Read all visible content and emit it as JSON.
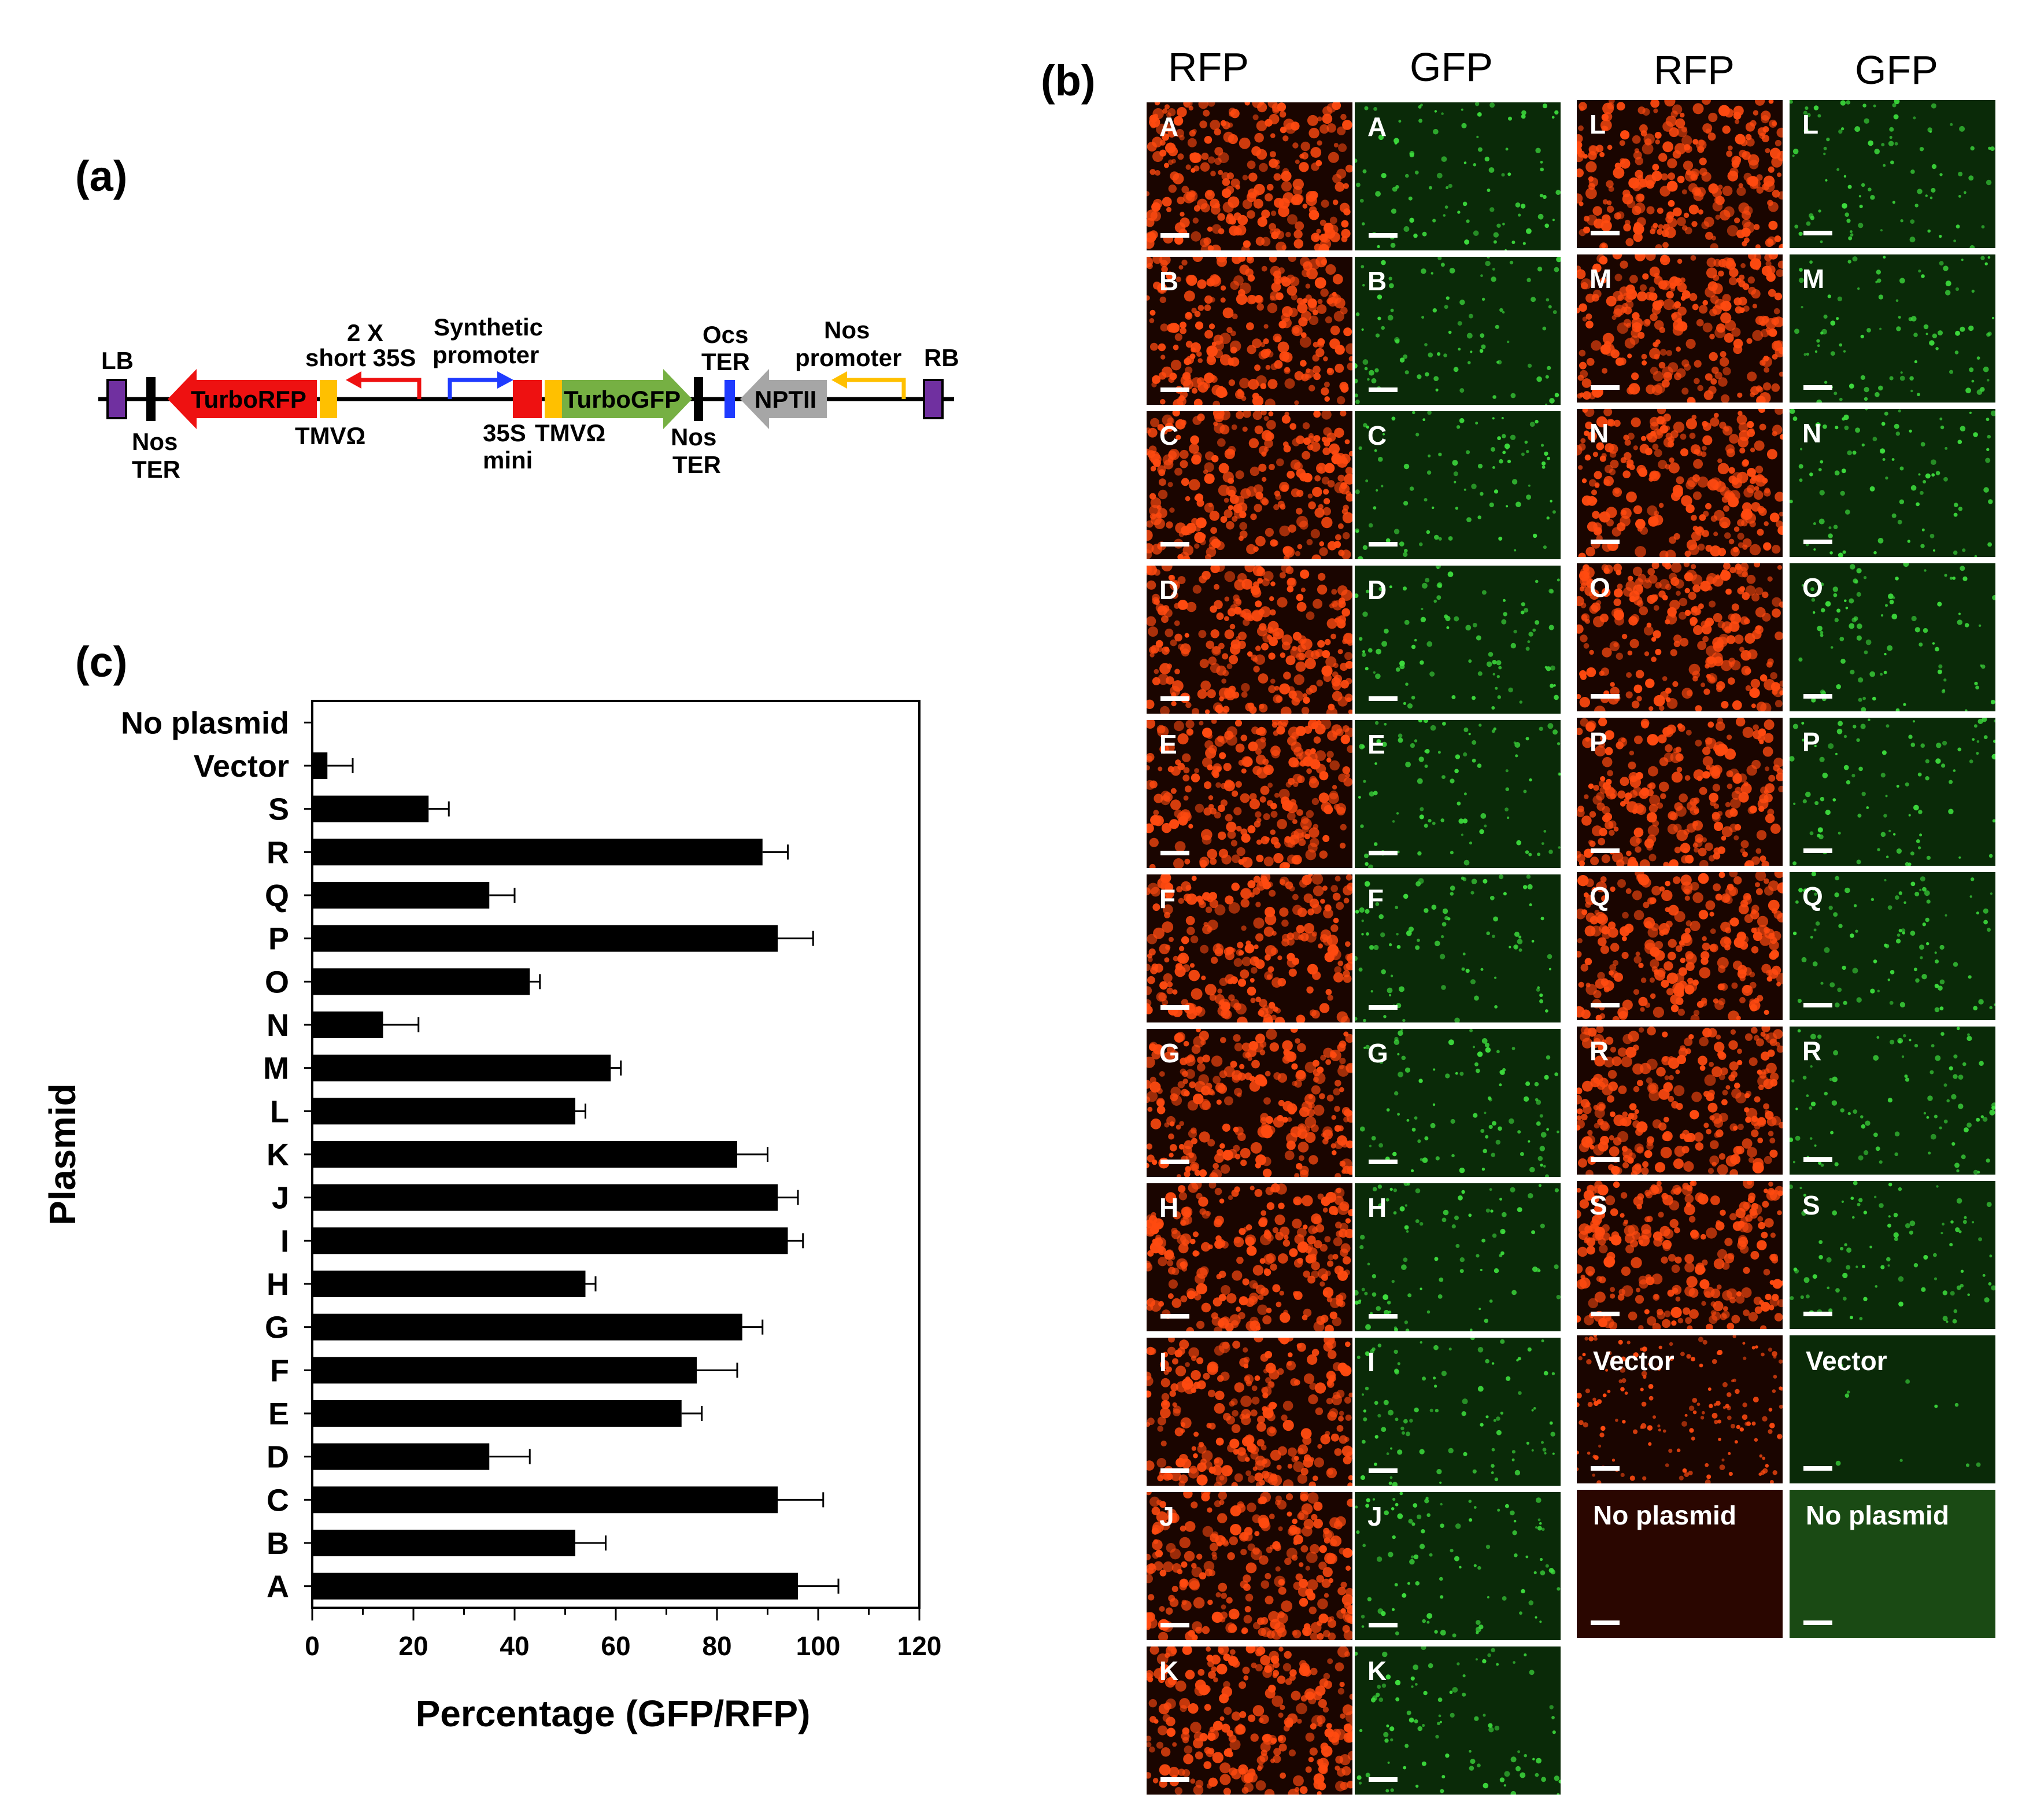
{
  "panels": {
    "a": "(a)",
    "b": "(b)",
    "c": "(c)"
  },
  "construct": {
    "lb": "LB",
    "rb": "RB",
    "nos_ter_left_1": "Nos",
    "nos_ter_left_2": "TER",
    "turbo_rfp": "TurboRFP",
    "tmv_left": "TMVΩ",
    "short35s_1": "2 X",
    "short35s_2": "short 35S",
    "synth_1": "Synthetic",
    "synth_2": "promoter",
    "mini_1": "35S",
    "mini_2": "mini",
    "tmv_right": "TMVΩ",
    "turbo_gfp": "TurboGFP",
    "nos_ter_right_1": "Nos",
    "nos_ter_right_2": "TER",
    "ocs_1": "Ocs",
    "ocs_2": "TER",
    "nptii": "NPTII",
    "nosprom_1": "Nos",
    "nosprom_2": "promoter",
    "colors": {
      "rfp": "#ee1111",
      "gfp": "#76b043",
      "tmv": "#ffc000",
      "lb_rb": "#7030a0",
      "blue": "#1f3bff",
      "nptii": "#a6a6a6",
      "promoter_arrow_nos": "#ffc000"
    }
  },
  "micrographs": {
    "headers": {
      "rfp_left": "RFP",
      "gfp_left": "GFP",
      "rfp_right": "RFP",
      "gfp_right": "GFP"
    },
    "left_column": [
      "A",
      "B",
      "C",
      "D",
      "E",
      "F",
      "G",
      "H",
      "I",
      "J",
      "K"
    ],
    "right_column": [
      "L",
      "M",
      "N",
      "O",
      "P",
      "Q",
      "R",
      "S",
      "Vector",
      "No plasmid"
    ],
    "colors": {
      "rfp_bg": "#1a0500",
      "rfp_cell": "#ff4a10",
      "gfp_bg": "#0a2a08",
      "gfp_cell": "#3ddc3d",
      "rfp_empty": "#2a0600",
      "gfp_empty": "#1a4a14"
    }
  },
  "chart_data": {
    "type": "bar",
    "orientation": "horizontal",
    "categories": [
      "No plasmid",
      "Vector",
      "S",
      "R",
      "Q",
      "P",
      "O",
      "N",
      "M",
      "L",
      "K",
      "J",
      "I",
      "H",
      "G",
      "F",
      "E",
      "D",
      "C",
      "B",
      "A"
    ],
    "values": [
      0,
      3,
      23,
      89,
      35,
      92,
      43,
      14,
      59,
      52,
      84,
      92,
      94,
      54,
      85,
      76,
      73,
      35,
      92,
      52,
      96
    ],
    "errors": [
      0,
      5,
      4,
      5,
      5,
      7,
      2,
      7,
      2,
      2,
      6,
      4,
      3,
      2,
      4,
      8,
      4,
      8,
      9,
      6,
      8
    ],
    "xlabel": "Percentage (GFP/RFP)",
    "ylabel": "Plasmid",
    "xlim": [
      0,
      120
    ],
    "xticks": [
      0,
      20,
      40,
      60,
      80,
      100,
      120
    ],
    "grid": false,
    "bar_color": "#000000"
  }
}
